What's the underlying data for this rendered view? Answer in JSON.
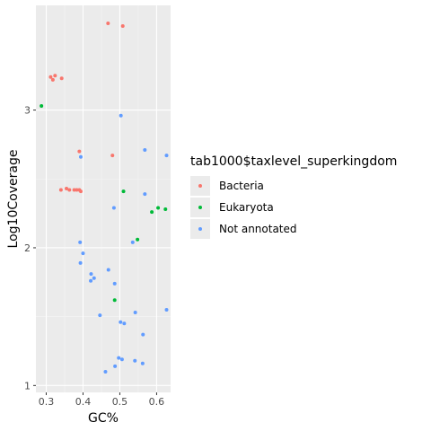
{
  "chart_data": {
    "type": "scatter",
    "xlabel": "GC%",
    "ylabel": "Log10Coverage",
    "xlim": [
      0.272,
      0.638
    ],
    "ylim": [
      0.95,
      3.76
    ],
    "xticks": [
      0.3,
      0.4,
      0.5,
      0.6
    ],
    "xtick_labels": [
      "0.3",
      "0.4",
      "0.5",
      "0.6"
    ],
    "yticks": [
      1,
      2,
      3
    ],
    "ytick_labels": [
      "1",
      "2",
      "3"
    ],
    "grid": true,
    "legend_position": "right",
    "legend_title": "tab1000$taxlevel_superkingdom",
    "series": [
      {
        "name": "Bacteria",
        "color": "#F8766D",
        "points": [
          [
            0.468,
            3.63
          ],
          [
            0.508,
            3.61
          ],
          [
            0.312,
            3.24
          ],
          [
            0.324,
            3.25
          ],
          [
            0.318,
            3.22
          ],
          [
            0.342,
            3.23
          ],
          [
            0.39,
            2.7
          ],
          [
            0.48,
            2.67
          ],
          [
            0.34,
            2.42
          ],
          [
            0.355,
            2.43
          ],
          [
            0.363,
            2.42
          ],
          [
            0.376,
            2.42
          ],
          [
            0.383,
            2.42
          ],
          [
            0.39,
            2.42
          ],
          [
            0.394,
            2.41
          ]
        ]
      },
      {
        "name": "Eukaryota",
        "color": "#00BA38",
        "points": [
          [
            0.287,
            3.03
          ],
          [
            0.51,
            2.41
          ],
          [
            0.587,
            2.26
          ],
          [
            0.604,
            2.29
          ],
          [
            0.624,
            2.28
          ],
          [
            0.548,
            2.06
          ],
          [
            0.486,
            1.62
          ]
        ]
      },
      {
        "name": "Not annotated",
        "color": "#619CFF",
        "points": [
          [
            0.503,
            2.96
          ],
          [
            0.568,
            2.71
          ],
          [
            0.627,
            2.67
          ],
          [
            0.394,
            2.66
          ],
          [
            0.568,
            2.39
          ],
          [
            0.484,
            2.29
          ],
          [
            0.535,
            2.04
          ],
          [
            0.392,
            2.04
          ],
          [
            0.4,
            1.96
          ],
          [
            0.393,
            1.89
          ],
          [
            0.469,
            1.84
          ],
          [
            0.422,
            1.81
          ],
          [
            0.43,
            1.78
          ],
          [
            0.421,
            1.76
          ],
          [
            0.486,
            1.74
          ],
          [
            0.542,
            1.53
          ],
          [
            0.446,
            1.51
          ],
          [
            0.627,
            1.55
          ],
          [
            0.502,
            1.46
          ],
          [
            0.512,
            1.45
          ],
          [
            0.563,
            1.37
          ],
          [
            0.497,
            1.2
          ],
          [
            0.506,
            1.19
          ],
          [
            0.541,
            1.18
          ],
          [
            0.487,
            1.14
          ],
          [
            0.562,
            1.16
          ],
          [
            0.461,
            1.1
          ]
        ]
      }
    ]
  }
}
